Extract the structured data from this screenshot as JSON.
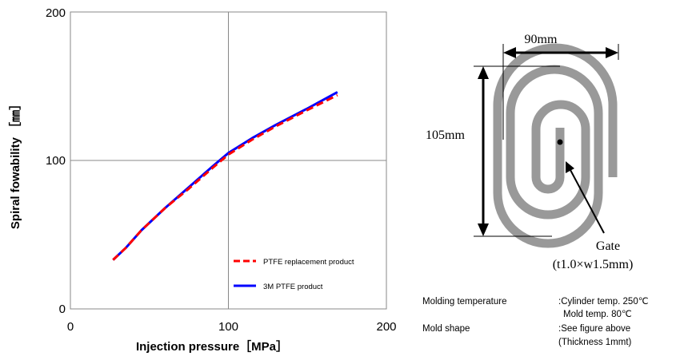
{
  "chart_data": {
    "type": "line",
    "title": "",
    "xlabel": "Injection pressure［MPa］",
    "ylabel": "Spiral fowability ［㎜］",
    "xlim": [
      0,
      200
    ],
    "ylim": [
      0,
      200
    ],
    "xticks": [
      "0",
      "100",
      "200"
    ],
    "yticks": [
      "0",
      "100",
      "200"
    ],
    "grid": true,
    "legend_position": "bottom-right",
    "series": [
      {
        "name": "PTFE replacement product",
        "color": "#ff0000",
        "dash": "dashed",
        "x": [
          27,
          35,
          45,
          60,
          75,
          90,
          100,
          115,
          130,
          150,
          169
        ],
        "y": [
          33,
          41,
          53,
          68,
          81,
          95,
          104,
          114,
          123,
          134,
          144
        ]
      },
      {
        "name": "3M PTFE product",
        "color": "#0000ff",
        "dash": "solid",
        "x": [
          27,
          35,
          45,
          60,
          75,
          90,
          100,
          115,
          130,
          150,
          169
        ],
        "y": [
          33,
          41,
          53,
          68,
          82,
          96,
          105,
          115,
          124,
          135,
          146
        ]
      }
    ]
  },
  "diagram": {
    "width_label": "90mm",
    "height_label": "105mm",
    "gate_label": "Gate",
    "gate_dims": "(t1.0×w1.5mm)",
    "spiral_color": "#999999"
  },
  "conditions": [
    {
      "label": "Molding temperature",
      "lines": [
        ":Cylinder temp. 250℃",
        "Mold temp. 80℃"
      ]
    },
    {
      "label": "Mold shape",
      "lines": [
        ":See figure above",
        "(Thickness 1mmt)"
      ]
    }
  ]
}
